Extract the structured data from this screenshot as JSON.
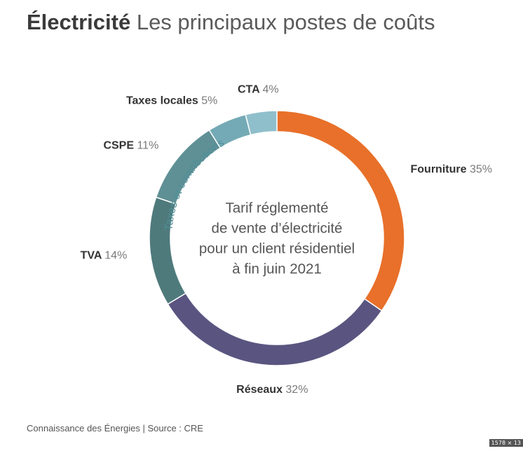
{
  "title": {
    "bold": "Électricité",
    "light": "Les principaux postes de coûts"
  },
  "center_text": [
    "Tarif réglementé",
    "de vente d’électricité",
    "pour un client résidentiel",
    "à fin juin 2021"
  ],
  "arc_label": "Taxes et contributions",
  "source": "Connaissance des Énergies | Source : CRE",
  "size_badge": "1578 × 13",
  "chart_data": {
    "type": "pie",
    "variant": "donut",
    "title": "Électricité Les principaux postes de coûts",
    "categories": [
      "Fourniture",
      "Réseaux",
      "TVA",
      "CSPE",
      "Taxes locales",
      "CTA"
    ],
    "values": [
      35,
      32,
      14,
      11,
      5,
      4
    ],
    "labels": [
      "35%",
      "32%",
      "14%",
      "11%",
      "5%",
      "4%"
    ],
    "colors": [
      "#e8702a",
      "#5a5580",
      "#4f7a7c",
      "#5f9095",
      "#74aab5",
      "#8fbfcb"
    ],
    "group": {
      "name": "Taxes et contributions",
      "members": [
        "TVA",
        "CSPE",
        "Taxes locales",
        "CTA"
      ]
    }
  }
}
